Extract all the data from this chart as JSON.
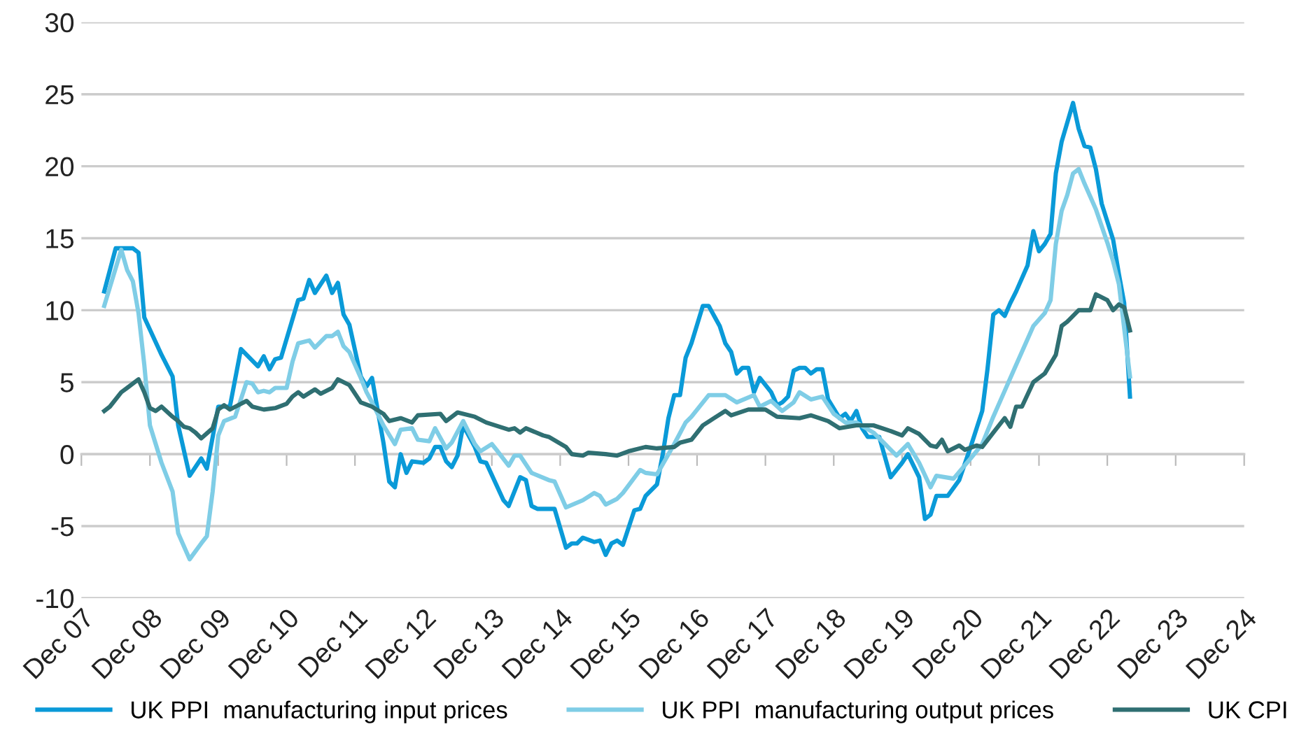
{
  "chart_data": {
    "type": "line",
    "series": [
      {
        "name": "UK PPI  manufacturing input prices",
        "color": "#0a9ad8",
        "x": [
          "2008-04",
          "2008-06",
          "2008-09",
          "2008-10",
          "2008-11",
          "2009-02",
          "2009-04",
          "2009-05",
          "2009-07",
          "2009-09",
          "2009-10",
          "2009-12",
          "2010-02",
          "2010-04",
          "2010-07",
          "2010-08",
          "2010-09",
          "2010-10",
          "2010-11",
          "2011-02",
          "2011-03",
          "2011-04",
          "2011-05",
          "2011-07",
          "2011-08",
          "2011-09",
          "2011-10",
          "2011-11",
          "2012-01",
          "2012-02",
          "2012-03",
          "2012-05",
          "2012-06",
          "2012-07",
          "2012-08",
          "2012-09",
          "2012-10",
          "2012-12",
          "2013-01",
          "2013-02",
          "2013-03",
          "2013-04",
          "2013-05",
          "2013-06",
          "2013-07",
          "2013-09",
          "2013-10",
          "2013-11",
          "2014-02",
          "2014-03",
          "2014-05",
          "2014-06",
          "2014-07",
          "2014-08",
          "2014-11",
          "2015-01",
          "2015-02",
          "2015-03",
          "2015-04",
          "2015-06",
          "2015-07",
          "2015-08",
          "2015-09",
          "2015-10",
          "2015-11",
          "2016-01",
          "2016-02",
          "2016-03",
          "2016-05",
          "2016-06",
          "2016-07",
          "2016-08",
          "2016-09",
          "2016-10",
          "2016-11",
          "2017-01",
          "2017-02",
          "2017-04",
          "2017-05",
          "2017-06",
          "2017-07",
          "2017-08",
          "2017-09",
          "2017-10",
          "2017-11",
          "2018-01",
          "2018-02",
          "2018-03",
          "2018-04",
          "2018-05",
          "2018-06",
          "2018-07",
          "2018-08",
          "2018-09",
          "2018-10",
          "2018-11",
          "2019-01",
          "2019-02",
          "2019-03",
          "2019-04",
          "2019-05",
          "2019-06",
          "2019-08",
          "2019-10",
          "2019-12",
          "2020-01",
          "2020-03",
          "2020-04",
          "2020-05",
          "2020-06",
          "2020-08",
          "2020-10",
          "2020-12",
          "2021-02",
          "2021-03",
          "2021-04",
          "2021-05",
          "2021-06",
          "2021-07",
          "2021-08",
          "2021-10",
          "2021-11",
          "2021-12",
          "2022-01",
          "2022-02",
          "2022-03",
          "2022-04",
          "2022-06",
          "2022-07",
          "2022-08",
          "2022-09",
          "2022-10",
          "2022-11",
          "2023-01",
          "2023-02",
          "2023-03",
          "2023-04"
        ],
        "values": [
          11.3,
          14.3,
          14.3,
          14.0,
          9.5,
          6.9,
          5.4,
          2.0,
          -1.5,
          -0.3,
          -1.0,
          3.3,
          3.3,
          7.3,
          6.1,
          6.8,
          5.9,
          6.6,
          6.7,
          10.7,
          10.8,
          12.1,
          11.2,
          12.4,
          11.2,
          11.9,
          9.7,
          9.0,
          5.4,
          4.7,
          5.3,
          0.8,
          -1.9,
          -2.3,
          0.0,
          -1.3,
          -0.5,
          -0.6,
          -0.3,
          0.5,
          0.5,
          -0.5,
          -0.9,
          -0.1,
          2.0,
          0.5,
          -0.5,
          -0.6,
          -3.2,
          -3.6,
          -1.6,
          -1.8,
          -3.6,
          -3.8,
          -3.8,
          -6.5,
          -6.2,
          -6.2,
          -5.8,
          -6.1,
          -6.0,
          -7.0,
          -6.2,
          -6.0,
          -6.3,
          -3.9,
          -3.8,
          -2.9,
          -2.1,
          0.0,
          2.5,
          4.1,
          4.1,
          6.7,
          7.7,
          10.3,
          10.3,
          8.9,
          7.7,
          7.1,
          5.6,
          6.0,
          6.0,
          4.3,
          5.3,
          4.3,
          3.4,
          3.6,
          4.0,
          5.8,
          6.0,
          6.0,
          5.6,
          5.9,
          5.9,
          3.8,
          2.5,
          2.8,
          2.3,
          3.0,
          1.8,
          1.2,
          1.2,
          -1.6,
          -0.6,
          0.0,
          -1.6,
          -4.5,
          -4.2,
          -2.9,
          -2.9,
          -1.8,
          0.5,
          3.0,
          5.9,
          9.7,
          10.0,
          9.6,
          10.5,
          11.3,
          13.1,
          15.5,
          14.1,
          14.6,
          15.3,
          19.5,
          21.7,
          24.4,
          22.6,
          21.4,
          21.3,
          19.8,
          17.4,
          14.9,
          12.5,
          10.5,
          4.0
        ]
      },
      {
        "name": "UK PPI  manufacturing output prices",
        "color": "#7fcde6",
        "x": [
          "2008-04",
          "2008-07",
          "2008-08",
          "2008-09",
          "2008-10",
          "2008-11",
          "2008-12",
          "2009-01",
          "2009-02",
          "2009-04",
          "2009-05",
          "2009-07",
          "2009-09",
          "2009-10",
          "2009-11",
          "2009-12",
          "2010-01",
          "2010-03",
          "2010-05",
          "2010-06",
          "2010-07",
          "2010-08",
          "2010-09",
          "2010-10",
          "2010-12",
          "2011-01",
          "2011-02",
          "2011-04",
          "2011-05",
          "2011-07",
          "2011-08",
          "2011-09",
          "2011-10",
          "2011-11",
          "2012-01",
          "2012-02",
          "2012-03",
          "2012-05",
          "2012-07",
          "2012-08",
          "2012-10",
          "2012-11",
          "2013-01",
          "2013-02",
          "2013-04",
          "2013-05",
          "2013-07",
          "2013-09",
          "2013-10",
          "2013-12",
          "2014-01",
          "2014-03",
          "2014-04",
          "2014-05",
          "2014-07",
          "2014-10",
          "2014-11",
          "2015-01",
          "2015-04",
          "2015-06",
          "2015-07",
          "2015-08",
          "2015-10",
          "2015-11",
          "2016-02",
          "2016-03",
          "2016-05",
          "2016-08",
          "2016-10",
          "2016-11",
          "2017-02",
          "2017-05",
          "2017-07",
          "2017-10",
          "2017-11",
          "2018-01",
          "2018-03",
          "2018-05",
          "2018-06",
          "2018-08",
          "2018-10",
          "2018-12",
          "2019-02",
          "2019-04",
          "2019-07",
          "2019-09",
          "2019-11",
          "2020-01",
          "2020-03",
          "2020-05",
          "2020-06",
          "2020-09",
          "2020-12",
          "2021-02",
          "2021-04",
          "2021-06",
          "2021-08",
          "2021-11",
          "2022-01",
          "2022-02",
          "2022-03",
          "2022-04",
          "2022-05",
          "2022-06",
          "2022-07",
          "2022-08",
          "2022-10",
          "2022-12",
          "2023-01",
          "2023-02",
          "2023-04"
        ],
        "values": [
          10.3,
          14.2,
          12.8,
          12.0,
          9.8,
          6.2,
          2.0,
          0.7,
          -0.6,
          -2.6,
          -5.5,
          -7.3,
          -6.2,
          -5.7,
          -2.6,
          1.3,
          2.3,
          2.6,
          5.0,
          4.9,
          4.3,
          4.4,
          4.3,
          4.6,
          4.6,
          6.4,
          7.7,
          7.9,
          7.4,
          8.2,
          8.2,
          8.5,
          7.5,
          7.1,
          5.3,
          4.3,
          3.6,
          2.0,
          0.7,
          1.7,
          1.8,
          1.0,
          0.9,
          1.8,
          0.4,
          0.8,
          2.3,
          0.7,
          0.2,
          0.7,
          0.2,
          -0.8,
          -0.1,
          -0.1,
          -1.3,
          -1.8,
          -1.9,
          -3.7,
          -3.2,
          -2.7,
          -2.9,
          -3.5,
          -3.1,
          -2.7,
          -1.1,
          -1.3,
          -1.4,
          0.7,
          2.2,
          2.6,
          4.1,
          4.1,
          3.6,
          4.1,
          3.3,
          3.7,
          3.0,
          3.6,
          4.3,
          3.8,
          4.0,
          2.8,
          2.2,
          2.2,
          1.5,
          0.7,
          -0.1,
          0.7,
          -0.6,
          -2.3,
          -1.5,
          -1.7,
          -0.3,
          0.7,
          2.6,
          4.4,
          6.2,
          8.9,
          9.8,
          10.7,
          14.6,
          16.9,
          18.0,
          19.5,
          19.8,
          18.8,
          17.0,
          14.7,
          13.4,
          11.8,
          5.4
        ]
      },
      {
        "name": "UK CPI",
        "color": "#2f6f72",
        "x": [
          "2008-04",
          "2008-05",
          "2008-07",
          "2008-08",
          "2008-10",
          "2008-11",
          "2008-12",
          "2009-01",
          "2009-02",
          "2009-04",
          "2009-05",
          "2009-06",
          "2009-07",
          "2009-08",
          "2009-09",
          "2009-11",
          "2009-12",
          "2010-01",
          "2010-02",
          "2010-05",
          "2010-06",
          "2010-08",
          "2010-10",
          "2010-12",
          "2011-01",
          "2011-02",
          "2011-03",
          "2011-05",
          "2011-06",
          "2011-08",
          "2011-09",
          "2011-11",
          "2012-01",
          "2012-03",
          "2012-05",
          "2012-06",
          "2012-08",
          "2012-10",
          "2012-11",
          "2013-03",
          "2013-04",
          "2013-06",
          "2013-09",
          "2013-11",
          "2014-03",
          "2014-04",
          "2014-05",
          "2014-06",
          "2014-09",
          "2014-10",
          "2015-01",
          "2015-02",
          "2015-04",
          "2015-05",
          "2015-08",
          "2015-10",
          "2015-12",
          "2016-03",
          "2016-05",
          "2016-08",
          "2016-09",
          "2016-11",
          "2017-01",
          "2017-03",
          "2017-05",
          "2017-06",
          "2017-09",
          "2017-12",
          "2018-02",
          "2018-06",
          "2018-08",
          "2018-11",
          "2019-01",
          "2019-04",
          "2019-07",
          "2019-10",
          "2019-12",
          "2020-01",
          "2020-03",
          "2020-05",
          "2020-06",
          "2020-07",
          "2020-08",
          "2020-10",
          "2020-11",
          "2021-01",
          "2021-02",
          "2021-04",
          "2021-06",
          "2021-07",
          "2021-08",
          "2021-09",
          "2021-11",
          "2022-01",
          "2022-03",
          "2022-04",
          "2022-05",
          "2022-07",
          "2022-09",
          "2022-10",
          "2022-12",
          "2023-01",
          "2023-02",
          "2023-03",
          "2023-04"
        ],
        "values": [
          3.0,
          3.3,
          4.3,
          4.6,
          5.2,
          4.3,
          3.2,
          3.0,
          3.3,
          2.6,
          2.3,
          1.9,
          1.8,
          1.5,
          1.1,
          1.8,
          3.1,
          3.4,
          3.1,
          3.7,
          3.3,
          3.1,
          3.2,
          3.5,
          4.0,
          4.3,
          4.0,
          4.5,
          4.2,
          4.6,
          5.2,
          4.8,
          3.6,
          3.3,
          2.8,
          2.3,
          2.5,
          2.2,
          2.7,
          2.8,
          2.3,
          2.9,
          2.6,
          2.2,
          1.7,
          1.8,
          1.5,
          1.8,
          1.3,
          1.2,
          0.5,
          0.0,
          -0.1,
          0.1,
          0.0,
          -0.1,
          0.2,
          0.5,
          0.4,
          0.5,
          0.8,
          1.0,
          2.0,
          2.5,
          3.0,
          2.7,
          3.1,
          3.1,
          2.6,
          2.5,
          2.7,
          2.3,
          1.8,
          2.0,
          2.0,
          1.6,
          1.3,
          1.8,
          1.4,
          0.6,
          0.5,
          1.0,
          0.2,
          0.6,
          0.3,
          0.6,
          0.5,
          1.5,
          2.5,
          1.9,
          3.3,
          3.3,
          5.0,
          5.6,
          6.9,
          8.9,
          9.2,
          10.0,
          10.0,
          11.1,
          10.7,
          10.0,
          10.4,
          10.2,
          8.6
        ]
      }
    ],
    "xlim": [
      "2007-12",
      "2024-12"
    ],
    "xticks": [
      {
        "value": "2007-12",
        "label": "Dec 07"
      },
      {
        "value": "2008-12",
        "label": "Dec 08"
      },
      {
        "value": "2009-12",
        "label": "Dec 09"
      },
      {
        "value": "2010-12",
        "label": "Dec 10"
      },
      {
        "value": "2011-12",
        "label": "Dec 11"
      },
      {
        "value": "2012-12",
        "label": "Dec 12"
      },
      {
        "value": "2013-12",
        "label": "Dec 13"
      },
      {
        "value": "2014-12",
        "label": "Dec 14"
      },
      {
        "value": "2015-12",
        "label": "Dec 15"
      },
      {
        "value": "2016-12",
        "label": "Dec 16"
      },
      {
        "value": "2017-12",
        "label": "Dec 17"
      },
      {
        "value": "2018-12",
        "label": "Dec 18"
      },
      {
        "value": "2019-12",
        "label": "Dec 19"
      },
      {
        "value": "2020-12",
        "label": "Dec 20"
      },
      {
        "value": "2021-12",
        "label": "Dec 21"
      },
      {
        "value": "2022-12",
        "label": "Dec 22"
      },
      {
        "value": "2023-12",
        "label": "Dec 23"
      },
      {
        "value": "2024-12",
        "label": "Dec 24"
      }
    ],
    "ylim": [
      -10,
      30
    ],
    "yticks": [
      -10,
      -5,
      0,
      5,
      10,
      15,
      20,
      25,
      30
    ],
    "grid": "y",
    "legend": "bottom",
    "marker": "none",
    "line_style": "solid"
  }
}
